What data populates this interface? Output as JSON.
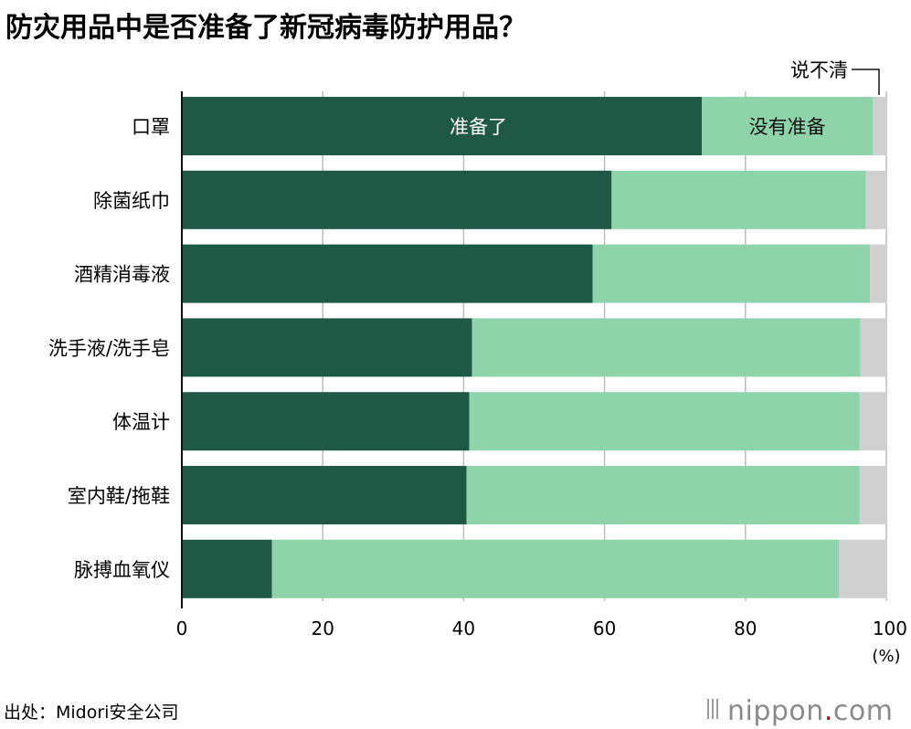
{
  "title": "防灾用品中是否准备了新冠病毒防护用品？",
  "source": "出处：Midori安全公司",
  "brand": {
    "name": "nippon",
    "dot": ".",
    "tld": "com"
  },
  "unit_label": "(%)",
  "inline_labels": {
    "prepared": "准备了",
    "not_prepared": "没有准备",
    "unclear": "说不清"
  },
  "colors": {
    "prepared": "#1f5946",
    "not_prepared": "#8fd3ab",
    "unclear": "#d0d0d0",
    "grid": "#bdbdbd",
    "axis": "#111111"
  },
  "chart_data": {
    "type": "bar",
    "orientation": "horizontal",
    "stacked": true,
    "title": "防灾用品中是否准备了新冠病毒防护用品？",
    "categories": [
      "口罩",
      "除菌纸巾",
      "酒精消毒液",
      "洗手液/洗手皂",
      "体温计",
      "室内鞋/拖鞋",
      "脉搏血氧仪"
    ],
    "series": [
      {
        "name": "准备了",
        "values": [
          73.8,
          61.0,
          58.3,
          41.2,
          40.8,
          40.4,
          12.8
        ]
      },
      {
        "name": "没有准备",
        "values": [
          24.3,
          36.1,
          39.4,
          55.1,
          55.4,
          55.8,
          80.5
        ]
      },
      {
        "name": "说不清",
        "values": [
          1.9,
          2.9,
          2.3,
          3.7,
          3.8,
          3.8,
          6.7
        ]
      }
    ],
    "xlim": [
      0,
      100
    ],
    "xticks": [
      0,
      20,
      40,
      60,
      80,
      100
    ],
    "xlabel": "(%)",
    "grid": true
  }
}
